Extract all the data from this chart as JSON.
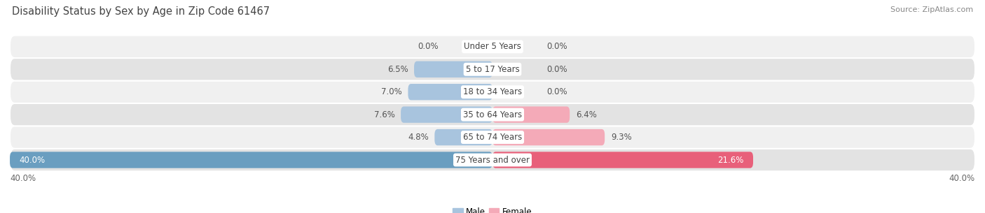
{
  "title": "Disability Status by Sex by Age in Zip Code 61467",
  "source": "Source: ZipAtlas.com",
  "categories": [
    "Under 5 Years",
    "5 to 17 Years",
    "18 to 34 Years",
    "35 to 64 Years",
    "65 to 74 Years",
    "75 Years and over"
  ],
  "male_values": [
    0.0,
    6.5,
    7.0,
    7.6,
    4.8,
    40.0
  ],
  "female_values": [
    0.0,
    0.0,
    0.0,
    6.4,
    9.3,
    21.6
  ],
  "male_color_normal": "#a8c4de",
  "male_color_large": "#6a9ec0",
  "female_color_normal": "#f4aab8",
  "female_color_large": "#e8607a",
  "row_bg_light": "#f0f0f0",
  "row_bg_dark": "#e3e3e3",
  "max_value": 40.0,
  "title_fontsize": 10.5,
  "source_fontsize": 8,
  "label_fontsize": 8.5,
  "category_fontsize": 8.5,
  "tick_fontsize": 8.5,
  "legend_fontsize": 8.5
}
